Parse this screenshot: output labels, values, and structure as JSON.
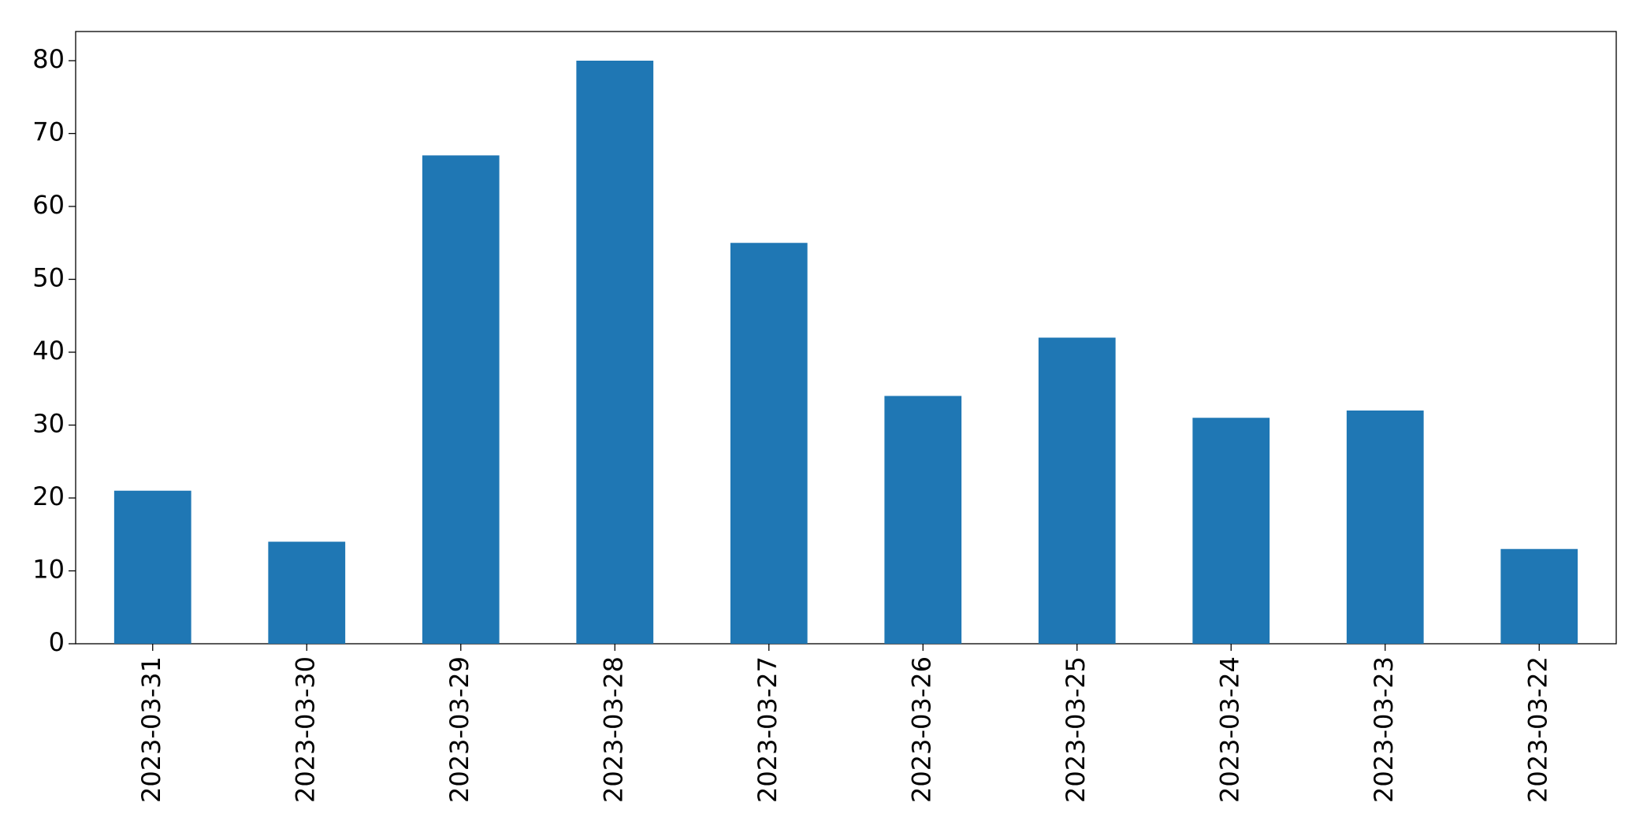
{
  "chart_data": {
    "type": "bar",
    "categories": [
      "2023-03-31",
      "2023-03-30",
      "2023-03-29",
      "2023-03-28",
      "2023-03-27",
      "2023-03-26",
      "2023-03-25",
      "2023-03-24",
      "2023-03-23",
      "2023-03-22"
    ],
    "values": [
      21,
      14,
      67,
      80,
      55,
      34,
      42,
      31,
      32,
      13
    ],
    "color": "#1f77b4",
    "ylim": [
      0,
      84
    ],
    "yticks": [
      0,
      10,
      20,
      30,
      40,
      50,
      60,
      70,
      80
    ],
    "grid": false
  }
}
